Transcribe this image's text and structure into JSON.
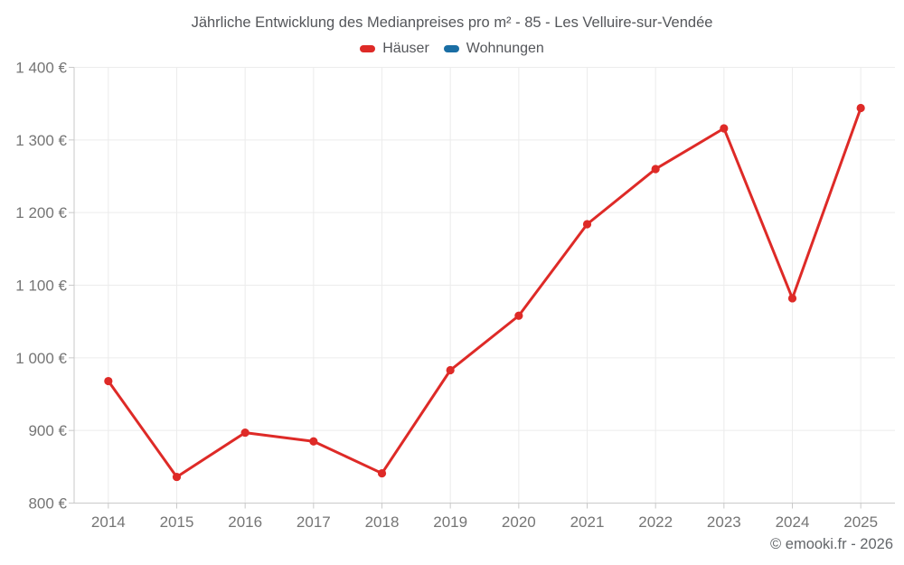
{
  "chart_data": {
    "type": "line",
    "title": "Jährliche Entwicklung des Medianpreises pro m² - 85 - Les Velluire-sur-Vendée",
    "categories": [
      "2014",
      "2015",
      "2016",
      "2017",
      "2018",
      "2019",
      "2020",
      "2021",
      "2022",
      "2023",
      "2024",
      "2025"
    ],
    "series": [
      {
        "name": "Häuser",
        "color": "#de2a27",
        "values": [
          968,
          836,
          897,
          885,
          841,
          983,
          1058,
          1184,
          1260,
          1316,
          1082,
          1344
        ]
      },
      {
        "name": "Wohnungen",
        "color": "#1a6ea4",
        "values": []
      }
    ],
    "xlabel": "",
    "ylabel": "",
    "unit": "€",
    "ylim": [
      800,
      1400
    ],
    "y_ticks": [
      800,
      900,
      1000,
      1100,
      1200,
      1300,
      1400
    ],
    "y_tick_labels": [
      "800 €",
      "900 €",
      "1 000 €",
      "1 100 €",
      "1 200 €",
      "1 300 €",
      "1 400 €"
    ],
    "grid": true,
    "legend_position": "top",
    "point_style": "circle"
  },
  "footer": {
    "copyright": "© emooki.fr - 2026"
  },
  "colors": {
    "background": "#ffffff",
    "grid": "#ececec",
    "axis": "#c9c9c9",
    "tick_label": "#757575",
    "title_text": "#54565a",
    "copyright_text": "#63666a"
  }
}
